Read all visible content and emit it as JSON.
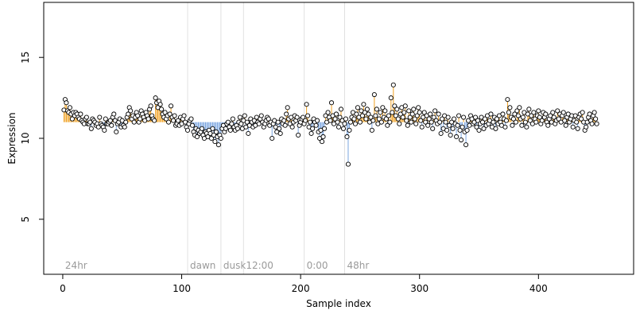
{
  "chart_data": {
    "type": "scatter",
    "xlabel": "Sample index",
    "ylabel": "Expression",
    "xlim": [
      -16,
      480
    ],
    "ylim": [
      1.6,
      18.4
    ],
    "xticks": [
      0,
      100,
      200,
      300,
      400
    ],
    "yticks": [
      5,
      10,
      15
    ],
    "baseline": 11,
    "colors": {
      "above": "#f0a020",
      "below": "#7aa5e0",
      "point_fill": "#ffffff",
      "point_stroke": "#000000",
      "marker_line": "#e0e0e0",
      "marker_text": "#9a9a9a"
    },
    "markers": [
      {
        "x": 0,
        "label": "24hr"
      },
      {
        "x": 105,
        "label": "dawn"
      },
      {
        "x": 133,
        "label": "dusk"
      },
      {
        "x": 152,
        "label": "12:00"
      },
      {
        "x": 203,
        "label": "0:00"
      },
      {
        "x": 237,
        "label": "48hr"
      }
    ],
    "series": [
      {
        "y": [
          11.75,
          12.4,
          12.2,
          11.7,
          11.6,
          11.9,
          11.5,
          11.2,
          11.6,
          11.4,
          11.6,
          11.5,
          11.3,
          11.2,
          11.5,
          11.1,
          11.0,
          10.9,
          11.2,
          11.3,
          10.9,
          10.9,
          11.0,
          10.6,
          11.2,
          11.1,
          11.0,
          10.8,
          10.9,
          10.7,
          11.3,
          10.9,
          10.8,
          10.7,
          10.5,
          11.2,
          10.9,
          10.9,
          11.0,
          11.1,
          10.8,
          11.3,
          11.5,
          11.1,
          10.4,
          10.9,
          11.0,
          11.2,
          10.7,
          11.1,
          10.8,
          10.7,
          11.0,
          11.3,
          11.5,
          11.9,
          11.7,
          11.2,
          11.4,
          11.0,
          11.3,
          11.6,
          11.4,
          11.0,
          11.2,
          11.7,
          11.5,
          11.3,
          11.1,
          11.6,
          11.4,
          11.2,
          11.8,
          12.0,
          11.4,
          11.2,
          11.1,
          12.5,
          12.2,
          11.9,
          12.3,
          12.1,
          11.8,
          11.5,
          11.3,
          11.6,
          11.2,
          11.4,
          11.0,
          11.5,
          12.0,
          11.3,
          11.1,
          11.4,
          10.8,
          10.9,
          11.1,
          10.8,
          11.3,
          10.9,
          11.2,
          11.4,
          11.0,
          10.7,
          10.5,
          10.9,
          11.1,
          11.2,
          10.8,
          10.4,
          10.2,
          10.6,
          10.1,
          10.5,
          10.3,
          10.4,
          10.6,
          10.2,
          10.0,
          10.4,
          10.3,
          10.1,
          10.5,
          10.3,
          10.0,
          10.6,
          10.2,
          9.8,
          10.4,
          10.1,
          9.6,
          10.2,
          10.0,
          10.6,
          10.8,
          10.4,
          10.6,
          10.9,
          11.0,
          10.7,
          10.5,
          10.9,
          11.2,
          10.7,
          10.5,
          10.8,
          10.6,
          11.0,
          11.3,
          10.9,
          10.6,
          11.1,
          11.4,
          10.7,
          11.0,
          10.3,
          10.8,
          11.2,
          11.0,
          10.7,
          11.1,
          10.8,
          11.3,
          11.0,
          10.9,
          11.2,
          11.4,
          11.0,
          10.7,
          10.9,
          11.1,
          11.3,
          11.2,
          10.8,
          11.0,
          10.0,
          10.9,
          11.1,
          10.7,
          10.4,
          11.0,
          10.6,
          10.3,
          11.2,
          10.9,
          11.1,
          10.8,
          11.5,
          11.9,
          11.2,
          10.9,
          11.3,
          10.7,
          11.0,
          11.4,
          11.1,
          11.3,
          10.2,
          10.8,
          11.0,
          11.2,
          11.3,
          10.9,
          11.1,
          12.1,
          11.4,
          10.7,
          11.0,
          10.3,
          10.6,
          11.2,
          11.0,
          10.8,
          11.1,
          10.4,
          10.0,
          10.5,
          9.8,
          10.1,
          10.6,
          11.4,
          11.0,
          11.6,
          11.3,
          11.1,
          12.2,
          11.4,
          10.9,
          11.2,
          11.5,
          11.0,
          10.7,
          11.3,
          11.8,
          11.1,
          10.6,
          10.9,
          11.2,
          10.1,
          8.4,
          10.5,
          11.0,
          11.3,
          11.6,
          11.2,
          10.9,
          11.5,
          11.9,
          11.3,
          11.0,
          11.7,
          11.4,
          12.1,
          11.6,
          11.2,
          11.8,
          11.5,
          11.0,
          11.3,
          10.5,
          11.1,
          12.7,
          11.4,
          11.8,
          10.9,
          11.2,
          11.6,
          11.0,
          11.9,
          11.3,
          11.7,
          11.2,
          10.8,
          11.4,
          11.0,
          12.5,
          11.6,
          13.3,
          12.0,
          11.4,
          11.8,
          11.2,
          10.9,
          11.5,
          11.9,
          11.3,
          11.6,
          12.0,
          11.1,
          10.8,
          11.7,
          11.3,
          11.0,
          11.5,
          11.8,
          11.2,
          10.9,
          11.4,
          11.9,
          11.6,
          11.1,
          10.7,
          11.3,
          11.6,
          11.0,
          11.4,
          10.8,
          11.2,
          11.5,
          11.0,
          10.6,
          11.3,
          11.7,
          11.1,
          10.9,
          11.5,
          11.0,
          10.3,
          11.2,
          10.6,
          11.4,
          11.0,
          10.5,
          11.3,
          10.8,
          10.2,
          11.0,
          10.6,
          11.2,
          10.9,
          10.1,
          10.8,
          11.4,
          10.5,
          9.9,
          10.7,
          11.3,
          10.4,
          9.6,
          10.5,
          11.1,
          10.8,
          11.4,
          11.2,
          10.9,
          11.0,
          11.3,
          10.7,
          11.1,
          10.5,
          10.9,
          11.3,
          11.0,
          10.6,
          11.2,
          10.8,
          11.4,
          10.9,
          11.1,
          11.5,
          10.7,
          11.0,
          11.3,
          10.6,
          11.2,
          10.9,
          11.4,
          11.0,
          10.8,
          11.5,
          11.2,
          10.7,
          11.1,
          12.4,
          11.6,
          11.9,
          11.3,
          10.8,
          11.2,
          11.5,
          11.0,
          11.7,
          11.4,
          11.9,
          11.2,
          10.8,
          11.3,
          11.6,
          11.0,
          10.7,
          11.5,
          11.8,
          11.1,
          11.4,
          10.9,
          11.6,
          11.2,
          11.0,
          11.4,
          11.7,
          11.3,
          10.9,
          11.1,
          11.6,
          11.3,
          11.5,
          11.0,
          10.8,
          11.2,
          11.4,
          11.0,
          11.6,
          11.3,
          10.9,
          11.1,
          11.7,
          11.2,
          11.5,
          11.0,
          11.4,
          11.6,
          11.1,
          10.8,
          11.3,
          11.5,
          11.0,
          11.2,
          11.4,
          10.7,
          11.1,
          11.4,
          11.0,
          10.6,
          11.3,
          11.5,
          11.2,
          11.6,
          11.0,
          10.5,
          10.7,
          11.0,
          11.3,
          11.5,
          11.1,
          10.9,
          11.4,
          11.6,
          11.2,
          10.9
        ]
      }
    ]
  }
}
